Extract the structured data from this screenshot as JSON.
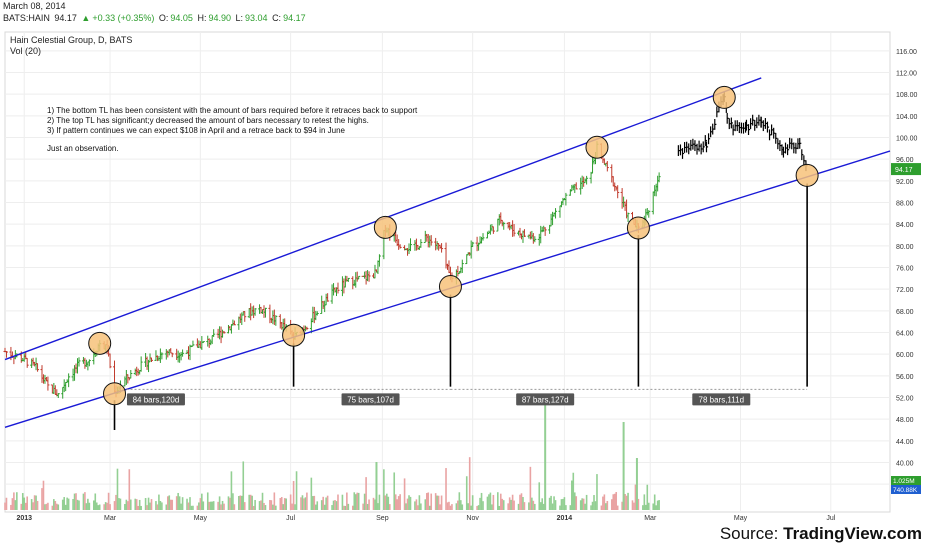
{
  "header": {
    "date": "March 08, 2014",
    "symbol": "BATS:HAIN",
    "last": "94.17",
    "change_arrow": "▲",
    "change": "+0.33 (+0.35%)",
    "o_label": "O:",
    "o_value": "94.05",
    "h_label": "H:",
    "h_value": "94.90",
    "l_label": "L:",
    "l_value": "93.04",
    "c_label": "C:",
    "c_value": "94.17",
    "chart_title": "Hain Celestial Group, D, BATS",
    "vol_label": "Vol (20)"
  },
  "notes": [
    "1) The bottom TL has been consistent with the amount of bars required before it retraces back to support",
    "2) The top TL has significant;y decreased the amount of bars necessary to retest the highs.",
    "3) If pattern continues we can expect $108 in April and a retrace back to $94 in June",
    "Just an observation."
  ],
  "footer": {
    "source_label": "Source: ",
    "source_brand": "TradingView.com"
  },
  "colors": {
    "up": "#2e9e2e",
    "down": "#c0392b",
    "vol_up": "#93cf93",
    "vol_down": "#e9a3a3",
    "trendline": "#1a1ad6",
    "circle_fill": "#f7c27a",
    "circle_stroke": "#111111",
    "last_price_bg": "#2e9e2e",
    "vol_badge_bg": "#1f5fd0"
  },
  "chart_data": {
    "type": "ohlc",
    "title": "Hain Celestial Group, D, BATS",
    "price_axis": {
      "ticks": [
        "116.00",
        "112.00",
        "108.00",
        "104.00",
        "100.00",
        "96.00",
        "92.00",
        "88.00",
        "84.00",
        "80.00",
        "76.00",
        "72.00",
        "68.00",
        "64.00",
        "60.00",
        "56.00",
        "52.00",
        "48.00",
        "44.00",
        "40.00",
        "36.00"
      ],
      "ylim": [
        34,
        118
      ]
    },
    "time_axis": {
      "ticks": [
        "2013",
        "Mar",
        "May",
        "Jul",
        "Sep",
        "Nov",
        "2014",
        "Mar",
        "May",
        "Jul"
      ],
      "bold_ticks": [
        "2013",
        "2014"
      ],
      "xlim": [
        "2012-12-20",
        "2014-08-10"
      ]
    },
    "last_price_label": "94.17",
    "volume_labels": [
      "1.025M",
      "740.88K"
    ],
    "price_path": [
      [
        "2012-12-20",
        60.5
      ],
      [
        "2013-01-02",
        59.0
      ],
      [
        "2013-01-10",
        57.5
      ],
      [
        "2013-01-18",
        54.0
      ],
      [
        "2013-01-25",
        52.5
      ],
      [
        "2013-02-01",
        56.0
      ],
      [
        "2013-02-08",
        58.0
      ],
      [
        "2013-02-15",
        59.0
      ],
      [
        "2013-02-22",
        62.0
      ],
      [
        "2013-02-27",
        61.0
      ],
      [
        "2013-03-04",
        53.0
      ],
      [
        "2013-03-10",
        55.0
      ],
      [
        "2013-03-18",
        57.0
      ],
      [
        "2013-03-28",
        59.0
      ],
      [
        "2013-04-08",
        60.5
      ],
      [
        "2013-04-20",
        60.0
      ],
      [
        "2013-04-28",
        61.5
      ],
      [
        "2013-05-08",
        62.5
      ],
      [
        "2013-05-20",
        65.0
      ],
      [
        "2013-06-01",
        67.5
      ],
      [
        "2013-06-10",
        68.5
      ],
      [
        "2013-06-20",
        66.5
      ],
      [
        "2013-06-27",
        65.0
      ],
      [
        "2013-07-03",
        63.0
      ],
      [
        "2013-07-12",
        65.5
      ],
      [
        "2013-07-22",
        69.0
      ],
      [
        "2013-08-01",
        72.0
      ],
      [
        "2013-08-10",
        73.5
      ],
      [
        "2013-08-20",
        74.0
      ],
      [
        "2013-08-28",
        75.0
      ],
      [
        "2013-09-03",
        83.5
      ],
      [
        "2013-09-12",
        80.5
      ],
      [
        "2013-09-22",
        79.5
      ],
      [
        "2013-10-01",
        81.5
      ],
      [
        "2013-10-10",
        79.5
      ],
      [
        "2013-10-17",
        74.0
      ],
      [
        "2013-10-24",
        76.0
      ],
      [
        "2013-11-01",
        80.0
      ],
      [
        "2013-11-10",
        82.0
      ],
      [
        "2013-11-20",
        85.0
      ],
      [
        "2013-11-28",
        83.0
      ],
      [
        "2013-12-06",
        82.0
      ],
      [
        "2013-12-14",
        81.5
      ],
      [
        "2013-12-22",
        84.0
      ],
      [
        "2013-12-31",
        88.0
      ],
      [
        "2014-01-10",
        91.0
      ],
      [
        "2014-01-18",
        92.0
      ],
      [
        "2014-01-24",
        98.0
      ],
      [
        "2014-01-31",
        94.0
      ],
      [
        "2014-02-07",
        90.0
      ],
      [
        "2014-02-14",
        85.5
      ],
      [
        "2014-02-21",
        83.0
      ],
      [
        "2014-02-28",
        87.0
      ],
      [
        "2014-03-08",
        94.17
      ]
    ],
    "annotations": {
      "upper_trendline": [
        [
          "2012-12-20",
          59.0
        ],
        [
          "2014-05-15",
          111.0
        ]
      ],
      "lower_trendline": [
        [
          "2012-12-20",
          46.5
        ],
        [
          "2014-08-10",
          97.5
        ]
      ],
      "circles": [
        [
          "2013-02-22",
          62.0
        ],
        [
          "2013-03-04",
          52.7
        ],
        [
          "2013-07-03",
          63.5
        ],
        [
          "2013-09-03",
          83.4
        ],
        [
          "2013-10-17",
          72.5
        ],
        [
          "2014-01-24",
          98.2
        ],
        [
          "2014-02-21",
          83.3
        ],
        [
          "2014-04-20",
          107.4
        ],
        [
          "2014-06-15",
          93.0
        ]
      ],
      "drop_lines": [
        [
          [
            "2013-03-04",
            51.5
          ],
          [
            "2013-03-04",
            46.0
          ]
        ],
        [
          [
            "2013-07-03",
            62.0
          ],
          [
            "2013-07-03",
            54.0
          ]
        ],
        [
          [
            "2013-10-17",
            71.0
          ],
          [
            "2013-10-17",
            54.0
          ]
        ],
        [
          [
            "2014-02-21",
            82.0
          ],
          [
            "2014-02-21",
            54.0
          ]
        ],
        [
          [
            "2014-06-15",
            91.5
          ],
          [
            "2014-06-15",
            54.0
          ]
        ]
      ],
      "projection_path": [
        [
          "2014-03-20",
          97.0
        ],
        [
          "2014-04-08",
          99.0
        ],
        [
          "2014-04-20",
          108.0
        ],
        [
          "2014-04-22",
          104.0
        ],
        [
          "2014-04-26",
          102.0
        ],
        [
          "2014-05-05",
          102.0
        ],
        [
          "2014-05-15",
          103.0
        ],
        [
          "2014-05-30",
          98.0
        ],
        [
          "2014-06-10",
          99.0
        ],
        [
          "2014-06-15",
          94.0
        ]
      ],
      "range_labels": [
        {
          "text": "84 bars,120d",
          "date": "2013-04-01",
          "from": "2013-03-04",
          "to": "2013-07-03"
        },
        {
          "text": "75 bars,107d",
          "date": "2013-08-24",
          "from": "2013-07-03",
          "to": "2013-10-17"
        },
        {
          "text": "87 bars,127d",
          "date": "2013-12-20",
          "from": "2013-10-17",
          "to": "2014-02-21"
        },
        {
          "text": "78 bars,111d",
          "date": "2014-04-18",
          "from": "2014-02-21",
          "to": "2014-06-15"
        }
      ],
      "range_label_y": 53.5
    }
  }
}
